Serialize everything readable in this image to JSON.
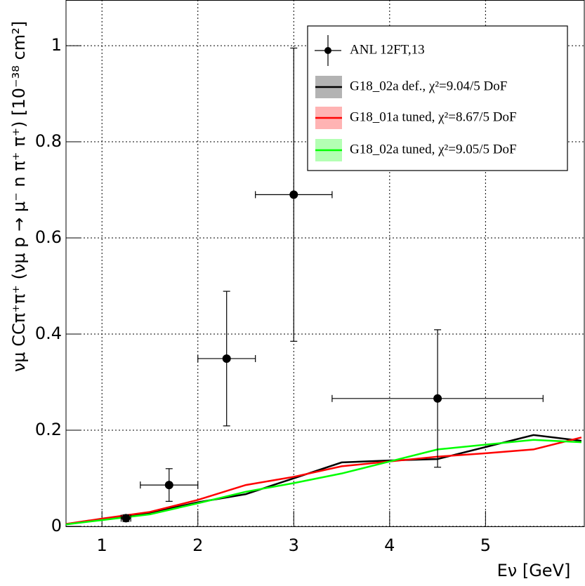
{
  "chart_data": {
    "type": "line",
    "x_label": "Eν [GeV]",
    "y_label": "νμ CCπ⁺π⁺ (νμ p → μ⁻ n π⁺ π⁺) [10⁻³⁸ cm²]",
    "xlim": [
      0.625,
      6.03
    ],
    "ylim": [
      0,
      1.095
    ],
    "xticks": [
      1,
      2,
      3,
      4,
      5
    ],
    "yticks": [
      0,
      0.2,
      0.4,
      0.6,
      0.8,
      1
    ],
    "grid": true,
    "legend": "upper right",
    "x": [
      0.625,
      1,
      1.5,
      2,
      2.5,
      3,
      3.5,
      4,
      4.5,
      5,
      5.5,
      6
    ],
    "series": [
      {
        "name": "G18_02a def., χ²=9.04/5 DoF",
        "color": "#000000",
        "band_color": "#b3b3b3",
        "values": [
          0.005,
          0.014,
          0.028,
          0.05,
          0.067,
          0.1,
          0.133,
          0.137,
          0.14,
          0.165,
          0.19,
          0.178
        ]
      },
      {
        "name": "G18_01a tuned, χ²=8.67/5 DoF",
        "color": "#ff0000",
        "band_color": "#ffb3b3",
        "values": [
          0.005,
          0.016,
          0.03,
          0.055,
          0.086,
          0.103,
          0.125,
          0.135,
          0.145,
          0.152,
          0.16,
          0.185
        ]
      },
      {
        "name": "G18_02a tuned, χ²=9.05/5 DoF",
        "color": "#00ff00",
        "band_color": "#b3ffb3",
        "values": [
          0.004,
          0.013,
          0.025,
          0.048,
          0.072,
          0.09,
          0.11,
          0.135,
          0.16,
          0.17,
          0.18,
          0.175
        ]
      }
    ],
    "points": {
      "name": "ANL  12FT,13",
      "color": "#000000",
      "x": [
        1.25,
        1.7,
        2.3,
        3.0,
        4.5
      ],
      "xerr": [
        0.05,
        0.3,
        0.3,
        0.4,
        1.1
      ],
      "values": [
        0.017,
        0.086,
        0.349,
        0.69,
        0.266
      ],
      "yerr": [
        0.007,
        0.034,
        0.14,
        0.305,
        0.143
      ]
    }
  }
}
